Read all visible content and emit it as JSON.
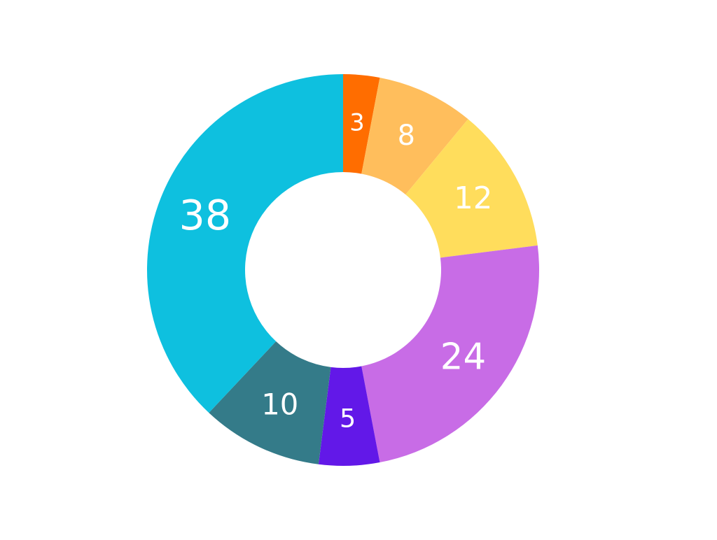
{
  "chart_data": {
    "type": "donut",
    "values": [
      3,
      8,
      12,
      24,
      5,
      10,
      38
    ],
    "colors": [
      "#ff6d00",
      "#ffbe5c",
      "#ffdd5c",
      "#c86ce6",
      "#6218e8",
      "#347b89",
      "#0ec0df"
    ]
  }
}
